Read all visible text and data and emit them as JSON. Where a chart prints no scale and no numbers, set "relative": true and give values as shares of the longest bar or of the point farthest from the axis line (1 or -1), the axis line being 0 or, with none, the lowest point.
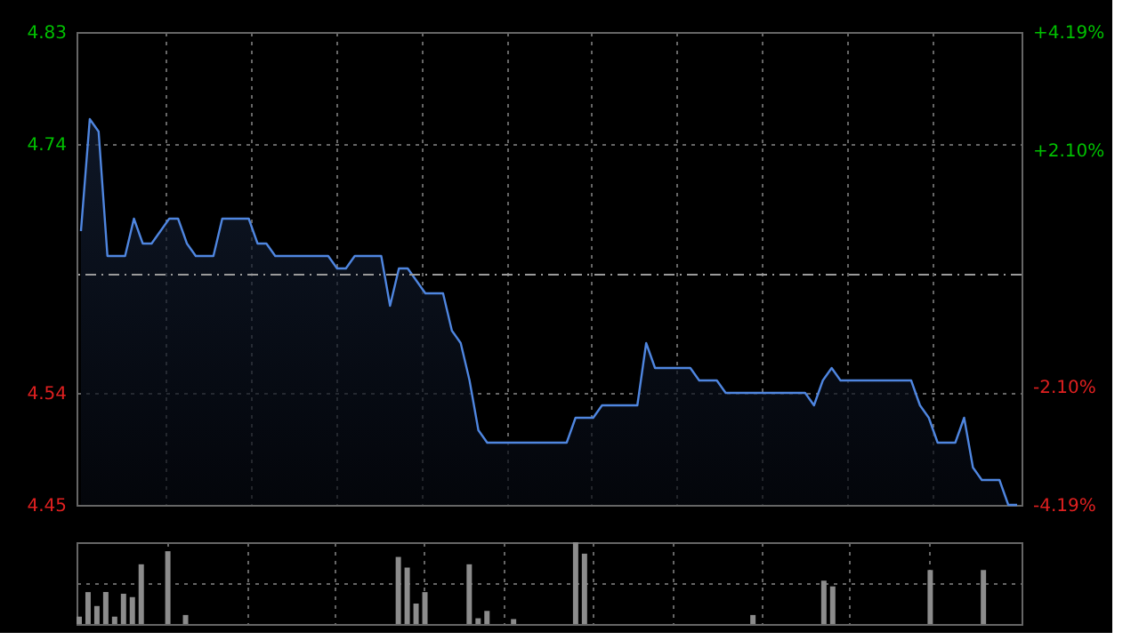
{
  "chart_data": [
    {
      "type": "area",
      "categories": [
        null,
        null,
        null,
        null,
        null,
        null,
        null,
        null,
        null,
        null,
        null,
        null,
        null,
        null,
        null,
        null,
        null,
        null,
        null,
        null,
        null,
        null,
        null,
        null,
        null,
        null,
        null,
        null,
        null,
        null,
        null,
        null,
        null,
        null,
        null,
        null,
        null,
        null,
        null,
        null,
        null,
        null,
        null,
        null,
        null,
        null,
        null,
        null,
        null,
        null,
        null,
        null,
        null,
        null,
        null,
        null,
        null,
        null,
        null,
        null,
        null,
        null,
        null,
        null,
        null,
        null,
        null,
        null,
        null,
        null,
        null,
        null,
        null,
        null,
        null,
        null,
        null,
        null,
        null,
        null,
        null,
        null,
        null,
        null,
        null,
        null,
        null,
        null,
        null,
        null,
        null,
        null,
        null,
        null,
        null,
        null,
        null,
        null,
        null,
        null,
        null,
        null,
        null,
        null,
        null,
        null,
        null
      ],
      "series": [
        {
          "color": "#4f86e0",
          "values": [
            4.67,
            4.76,
            4.75,
            4.65,
            4.65,
            4.65,
            4.68,
            4.66,
            4.66,
            4.67,
            4.68,
            4.68,
            4.66,
            4.65,
            4.65,
            4.65,
            4.68,
            4.68,
            4.68,
            4.68,
            4.66,
            4.66,
            4.65,
            4.65,
            4.65,
            4.65,
            4.65,
            4.65,
            4.65,
            4.64,
            4.64,
            4.65,
            4.65,
            4.65,
            4.65,
            4.61,
            4.64,
            4.64,
            4.63,
            4.62,
            4.62,
            4.62,
            4.59,
            4.58,
            4.55,
            4.51,
            4.5,
            4.5,
            4.5,
            4.5,
            4.5,
            4.5,
            4.5,
            4.5,
            4.5,
            4.5,
            4.52,
            4.52,
            4.52,
            4.53,
            4.53,
            4.53,
            4.53,
            4.53,
            4.58,
            4.56,
            4.56,
            4.56,
            4.56,
            4.56,
            4.55,
            4.55,
            4.55,
            4.54,
            4.54,
            4.54,
            4.54,
            4.54,
            4.54,
            4.54,
            4.54,
            4.54,
            4.54,
            4.53,
            4.55,
            4.56,
            4.55,
            4.55,
            4.55,
            4.55,
            4.55,
            4.55,
            4.55,
            4.55,
            4.55,
            4.53,
            4.52,
            4.5,
            4.5,
            4.5,
            4.52,
            4.48,
            4.47,
            4.47,
            4.47,
            4.45,
            4.45
          ]
        }
      ],
      "ylim": [
        4.45,
        4.83
      ],
      "yticks": [
        4.45,
        4.54,
        4.74,
        4.83
      ],
      "y2lim": [
        -4.19,
        4.19
      ],
      "y2ticks": [
        {
          "value": -4.19,
          "label": "-4.19%"
        },
        {
          "value": -2.1,
          "label": "-2.10%"
        },
        {
          "value": 2.1,
          "label": "+2.10%"
        },
        {
          "value": 4.19,
          "label": "+4.19%"
        }
      ],
      "ref_lines": [
        {
          "axis": "y",
          "value": 4.635,
          "color": "#9a9a9a",
          "line_style": "dashed"
        }
      ],
      "grid": true,
      "tick_labels": "y"
    },
    {
      "type": "bar",
      "relative": true,
      "categories": [
        null,
        null,
        null,
        null,
        null,
        null,
        null,
        null,
        null,
        null,
        null,
        null,
        null,
        null,
        null,
        null,
        null,
        null,
        null,
        null,
        null,
        null,
        null,
        null,
        null,
        null,
        null,
        null,
        null,
        null,
        null,
        null,
        null,
        null,
        null,
        null,
        null,
        null,
        null,
        null,
        null,
        null,
        null,
        null,
        null,
        null,
        null,
        null,
        null,
        null,
        null,
        null,
        null,
        null,
        null,
        null,
        null,
        null,
        null,
        null,
        null,
        null,
        null,
        null,
        null,
        null,
        null,
        null,
        null,
        null,
        null,
        null,
        null,
        null,
        null,
        null,
        null,
        null,
        null,
        null,
        null,
        null,
        null,
        null,
        null,
        null,
        null,
        null,
        null,
        null,
        null,
        null,
        null,
        null,
        null,
        null,
        null,
        null,
        null,
        null,
        null,
        null,
        null,
        null,
        null,
        null,
        null
      ],
      "series": [
        {
          "color": "#8c8c8c",
          "values": [
            0.09,
            0.39,
            0.22,
            0.39,
            0.09,
            0.37,
            0.33,
            0.73,
            0,
            0,
            0.89,
            0,
            0.11,
            0,
            0,
            0,
            0,
            0,
            0,
            0,
            0,
            0,
            0,
            0,
            0,
            0,
            0,
            0,
            0,
            0,
            0,
            0,
            0,
            0,
            0,
            0,
            0.82,
            0.69,
            0.25,
            0.39,
            0,
            0,
            0,
            0,
            0.73,
            0.07,
            0.16,
            0,
            0,
            0.06,
            0,
            0,
            0,
            0,
            0,
            0,
            1.0,
            0.86,
            0,
            0,
            0,
            0,
            0,
            0,
            0,
            0,
            0,
            0,
            0,
            0,
            0,
            0,
            0,
            0,
            0,
            0,
            0.11,
            0,
            0,
            0,
            0,
            0,
            0,
            0,
            0.53,
            0.46,
            0,
            0,
            0,
            0,
            0,
            0,
            0,
            0,
            0,
            0,
            0.66,
            0,
            0,
            0,
            0,
            0,
            0.66,
            0,
            0,
            0,
            0
          ]
        }
      ],
      "grid": true,
      "tick_labels": false
    }
  ]
}
